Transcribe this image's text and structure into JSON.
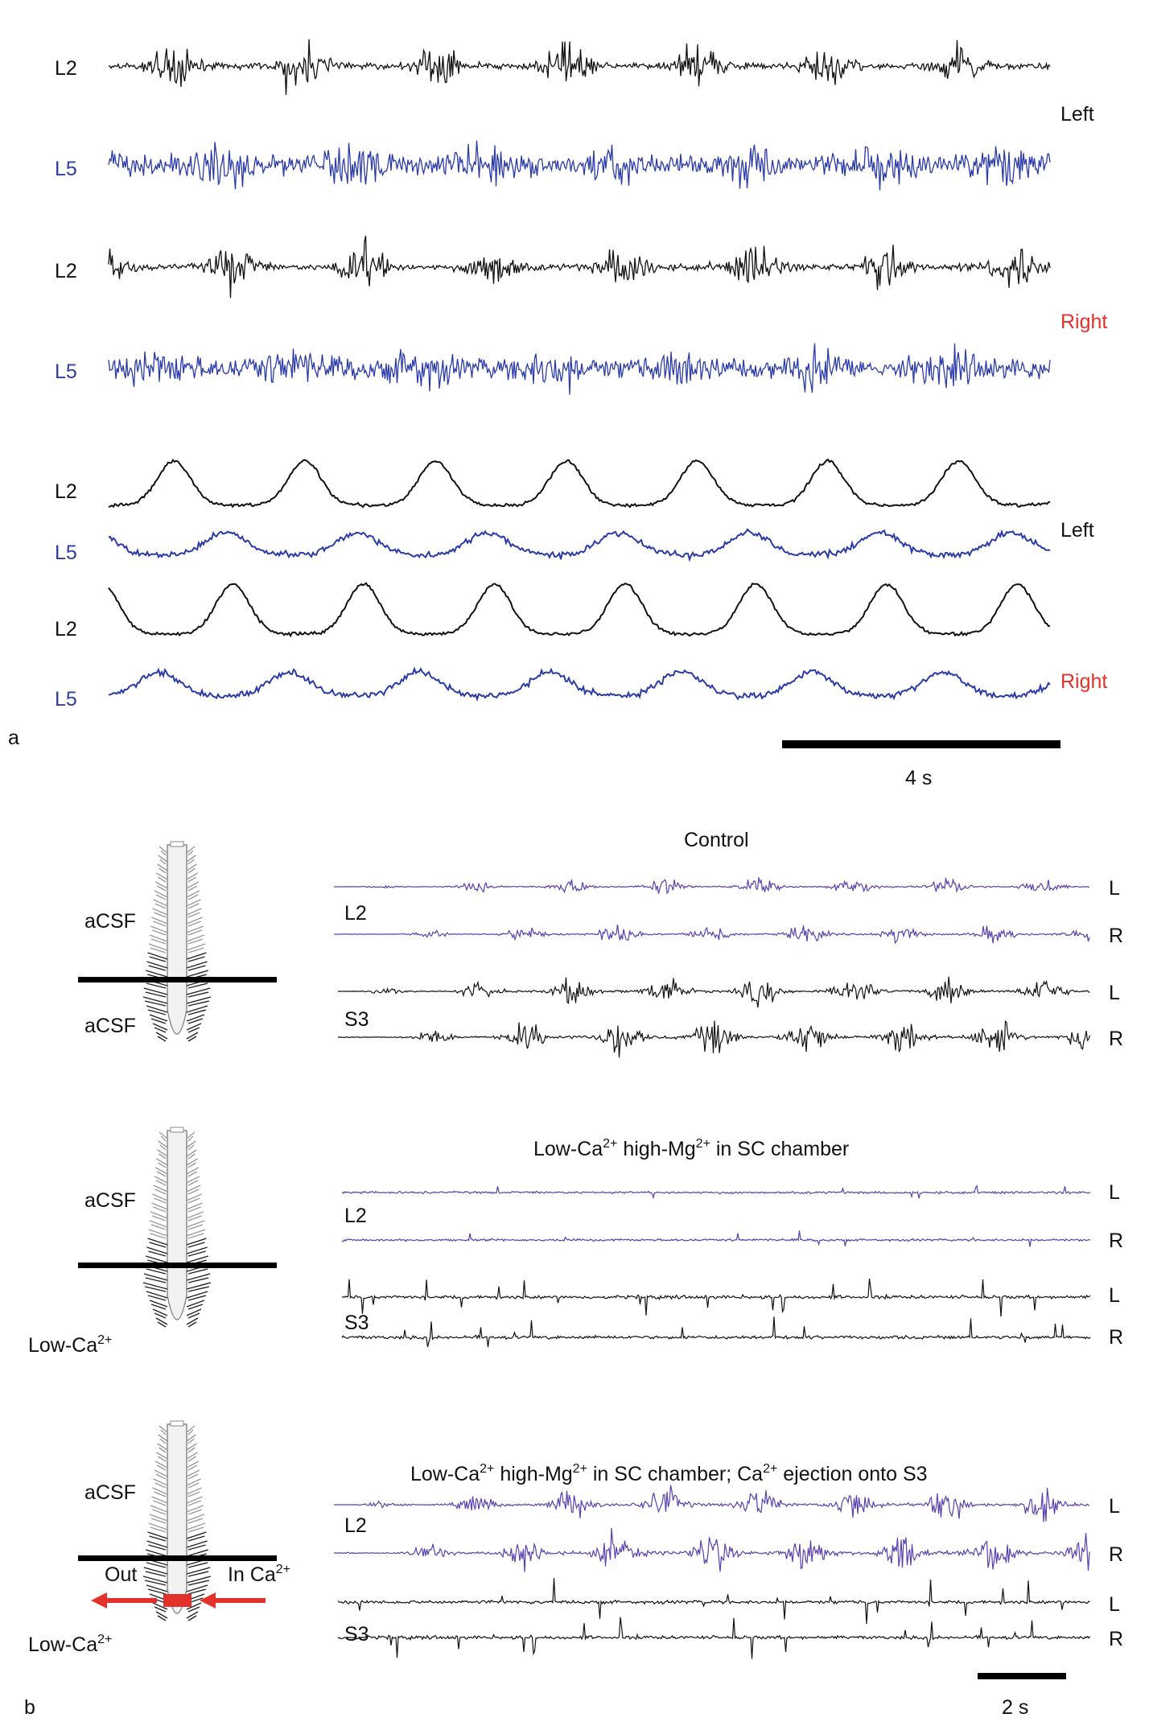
{
  "colors": {
    "trace_black": "#111111",
    "trace_blue": "#2a3aa8",
    "trace_purple": "#5a3fb0",
    "label_blue": "#2d3e9c",
    "label_red": "#e2312b",
    "arrow_red": "#e2312b",
    "cord_gray": "#9a9a9a"
  },
  "panel_a": {
    "panel_letter": "a",
    "raw_traces": [
      {
        "label": "L2",
        "color": "black",
        "side": ""
      },
      {
        "label": "L5",
        "color": "blue",
        "side": "Left"
      },
      {
        "label": "L2",
        "color": "black",
        "side": ""
      },
      {
        "label": "L5",
        "color": "blue",
        "side": "Right"
      }
    ],
    "integrated_traces": [
      {
        "label": "L2",
        "color": "black",
        "side": ""
      },
      {
        "label": "L5",
        "color": "blue",
        "side": "Left"
      },
      {
        "label": "L2",
        "color": "black",
        "side": ""
      },
      {
        "label": "L5",
        "color": "blue",
        "side": "Right"
      }
    ],
    "scale_bar": {
      "label": "4 s",
      "seconds": 4
    }
  },
  "panel_b": {
    "panel_letter": "b",
    "conditions": [
      {
        "title": "Control",
        "title_sup": "",
        "title_parts": [
          {
            "t": "Control",
            "sup": false
          }
        ],
        "upper_bath": "aCSF",
        "lower_bath_parts": [
          {
            "t": "aCSF",
            "sup": false
          }
        ],
        "l2_label": "L2",
        "s3_label": "S3",
        "side_labels": [
          "L",
          "R",
          "L",
          "R"
        ],
        "activity": "rhythmic"
      },
      {
        "title_parts": [
          {
            "t": "Low-Ca",
            "sup": false
          },
          {
            "t": "2+",
            "sup": true
          },
          {
            "t": " high-Mg",
            "sup": false
          },
          {
            "t": "2+",
            "sup": true
          },
          {
            "t": " in SC chamber",
            "sup": false
          }
        ],
        "upper_bath": "aCSF",
        "lower_bath_parts": [
          {
            "t": "Low-Ca",
            "sup": false
          },
          {
            "t": "2+",
            "sup": true
          }
        ],
        "l2_label": "L2",
        "s3_label": "S3",
        "side_labels": [
          "L",
          "R",
          "L",
          "R"
        ],
        "activity": "silent"
      },
      {
        "title_parts": [
          {
            "t": "Low-Ca",
            "sup": false
          },
          {
            "t": "2+",
            "sup": true
          },
          {
            "t": " high-Mg",
            "sup": false
          },
          {
            "t": "2+",
            "sup": true
          },
          {
            "t": " in SC chamber; Ca",
            "sup": false
          },
          {
            "t": "2+",
            "sup": true
          },
          {
            "t": " ejection onto S3",
            "sup": false
          }
        ],
        "upper_bath": "aCSF",
        "lower_bath_parts": [
          {
            "t": "Low-Ca",
            "sup": false
          },
          {
            "t": "2+",
            "sup": true
          }
        ],
        "l2_label": "L2",
        "s3_label": "S3",
        "side_labels": [
          "L",
          "R",
          "L",
          "R"
        ],
        "activity": "restored",
        "arrow_out_label": "Out",
        "arrow_in_parts": [
          {
            "t": "In Ca",
            "sup": false
          },
          {
            "t": "2+",
            "sup": true
          }
        ]
      }
    ],
    "scale_bar": {
      "label": "2 s",
      "seconds": 2
    }
  }
}
